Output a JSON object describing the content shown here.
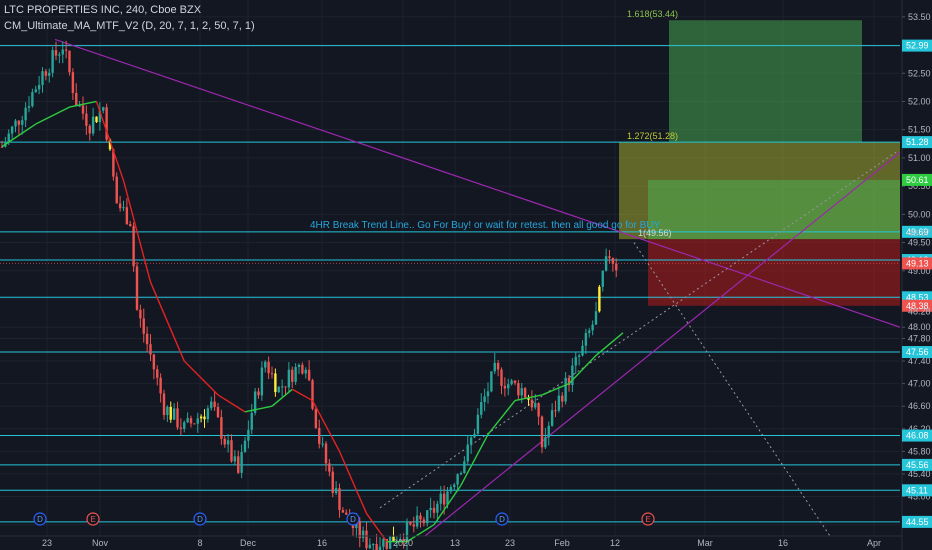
{
  "header": {
    "symbol_line": "LTC PROPERTIES INC, 240, Cboe BZX",
    "indicator_line": "CM_Ultimate_MA_MTF_V2 (D, 20, 7, 1, 2, 50, 7, 1)"
  },
  "colors": {
    "background": "#131722",
    "up": "#26a69a",
    "down": "#ef5350",
    "neutral_candle": "#ffeb3b",
    "ma_up": "#2ecc40",
    "ma_down": "#e52222",
    "hline": "#26c6da",
    "trendline": "#9c27b0",
    "target_zone": "#4caf50",
    "stop_zone": "#b71c1c",
    "entry_zone": "#c0ca33",
    "annotation": "#26a6d9"
  },
  "chart_data": {
    "type": "candlestick",
    "y_range": [
      44.3,
      53.55
    ],
    "y_ticks": [
      "53.50",
      "53.00",
      "52.50",
      "52.00",
      "51.50",
      "51.00",
      "50.50",
      "50.00",
      "49.50",
      "49.00",
      "48.50",
      "48.00",
      "47.80",
      "47.40",
      "47.00",
      "46.60",
      "46.20",
      "45.80",
      "45.40",
      "45.00",
      "44.50"
    ],
    "x_ticks": [
      "23",
      "Nov",
      "8",
      "Dec",
      "16",
      "2020",
      "13",
      "23",
      "Feb",
      "12",
      "Mar",
      "16",
      "Apr"
    ],
    "price_labels": [
      {
        "value": 52.99,
        "label": "52.99",
        "kind": "level"
      },
      {
        "value": 51.28,
        "label": "51.28",
        "kind": "level"
      },
      {
        "value": 49.69,
        "label": "49.69",
        "kind": "level"
      },
      {
        "value": 49.19,
        "label": "49.19",
        "kind": "level"
      },
      {
        "value": 48.53,
        "label": "48.53",
        "kind": "level"
      },
      {
        "value": 47.56,
        "label": "47.56",
        "kind": "level"
      },
      {
        "value": 46.08,
        "label": "46.08",
        "kind": "level"
      },
      {
        "value": 45.56,
        "label": "45.56",
        "kind": "level"
      },
      {
        "value": 45.11,
        "label": "45.11",
        "kind": "level"
      },
      {
        "value": 44.55,
        "label": "44.55",
        "kind": "level"
      },
      {
        "value": 50.61,
        "label": "50.61",
        "kind": "target"
      },
      {
        "value": 49.13,
        "label": "49.13",
        "kind": "last"
      },
      {
        "value": 48.38,
        "label": "48.38",
        "kind": "stop"
      },
      {
        "value": 49.67,
        "label": "49.67",
        "kind": "plain"
      },
      {
        "value": 48.28,
        "label": "48.28",
        "kind": "plain"
      }
    ],
    "fib_labels": [
      {
        "label": "1.618(53.44)",
        "value": 53.44
      },
      {
        "label": "1.272(51.28)",
        "value": 51.28
      },
      {
        "label": "1(49.56)",
        "value": 49.56
      }
    ],
    "annotation": "4HR Break Trend Line.. Go For Buy! or wait for retest. then all good go for BUY",
    "events": [
      "D",
      "E",
      "D",
      "D",
      "D",
      "E"
    ],
    "close_path": [
      {
        "day": 0,
        "close": 51.2
      },
      {
        "day": 3,
        "close": 51.8
      },
      {
        "day": 6,
        "close": 52.5
      },
      {
        "day": 9,
        "close": 53.0
      },
      {
        "day": 11,
        "close": 52.0
      },
      {
        "day": 13,
        "close": 51.6
      },
      {
        "day": 15,
        "close": 51.9
      },
      {
        "day": 17,
        "close": 50.2
      },
      {
        "day": 19,
        "close": 49.9
      },
      {
        "day": 20,
        "close": 48.3
      },
      {
        "day": 22,
        "close": 47.5
      },
      {
        "day": 24,
        "close": 46.6
      },
      {
        "day": 27,
        "close": 46.2
      },
      {
        "day": 29,
        "close": 46.4
      },
      {
        "day": 31,
        "close": 46.6
      },
      {
        "day": 33,
        "close": 46.0
      },
      {
        "day": 35,
        "close": 45.4
      },
      {
        "day": 37,
        "close": 46.5
      },
      {
        "day": 39,
        "close": 47.4
      },
      {
        "day": 41,
        "close": 46.9
      },
      {
        "day": 43,
        "close": 47.2
      },
      {
        "day": 45,
        "close": 47.4
      },
      {
        "day": 47,
        "close": 46.0
      },
      {
        "day": 49,
        "close": 45.2
      },
      {
        "day": 51,
        "close": 44.6
      },
      {
        "day": 54,
        "close": 44.2
      },
      {
        "day": 57,
        "close": 44.2
      },
      {
        "day": 60,
        "close": 44.4
      },
      {
        "day": 63,
        "close": 44.6
      },
      {
        "day": 66,
        "close": 45.1
      },
      {
        "day": 69,
        "close": 45.8
      },
      {
        "day": 71,
        "close": 46.6
      },
      {
        "day": 73,
        "close": 47.2
      },
      {
        "day": 75,
        "close": 47.0
      },
      {
        "day": 77,
        "close": 46.9
      },
      {
        "day": 79,
        "close": 46.6
      },
      {
        "day": 80,
        "close": 45.9
      },
      {
        "day": 82,
        "close": 46.6
      },
      {
        "day": 84,
        "close": 47.1
      },
      {
        "day": 86,
        "close": 47.6
      },
      {
        "day": 88,
        "close": 48.2
      },
      {
        "day": 89,
        "close": 48.9
      },
      {
        "day": 90,
        "close": 49.3
      },
      {
        "day": 91,
        "close": 49.1
      }
    ],
    "moving_average": [
      {
        "day": 0,
        "value": 51.2
      },
      {
        "day": 5,
        "value": 51.6
      },
      {
        "day": 10,
        "value": 51.9
      },
      {
        "day": 14,
        "value": 52.0
      },
      {
        "day": 18,
        "value": 50.6
      },
      {
        "day": 22,
        "value": 48.8
      },
      {
        "day": 27,
        "value": 47.4
      },
      {
        "day": 32,
        "value": 46.8
      },
      {
        "day": 36,
        "value": 46.5
      },
      {
        "day": 40,
        "value": 46.6
      },
      {
        "day": 43,
        "value": 46.9
      },
      {
        "day": 46,
        "value": 46.7
      },
      {
        "day": 50,
        "value": 45.8
      },
      {
        "day": 54,
        "value": 44.7
      },
      {
        "day": 57,
        "value": 44.2
      },
      {
        "day": 60,
        "value": 44.2
      },
      {
        "day": 64,
        "value": 44.5
      },
      {
        "day": 68,
        "value": 45.2
      },
      {
        "day": 72,
        "value": 46.1
      },
      {
        "day": 76,
        "value": 46.7
      },
      {
        "day": 80,
        "value": 46.8
      },
      {
        "day": 84,
        "value": 47.0
      },
      {
        "day": 88,
        "value": 47.5
      },
      {
        "day": 92,
        "value": 47.9
      }
    ]
  }
}
